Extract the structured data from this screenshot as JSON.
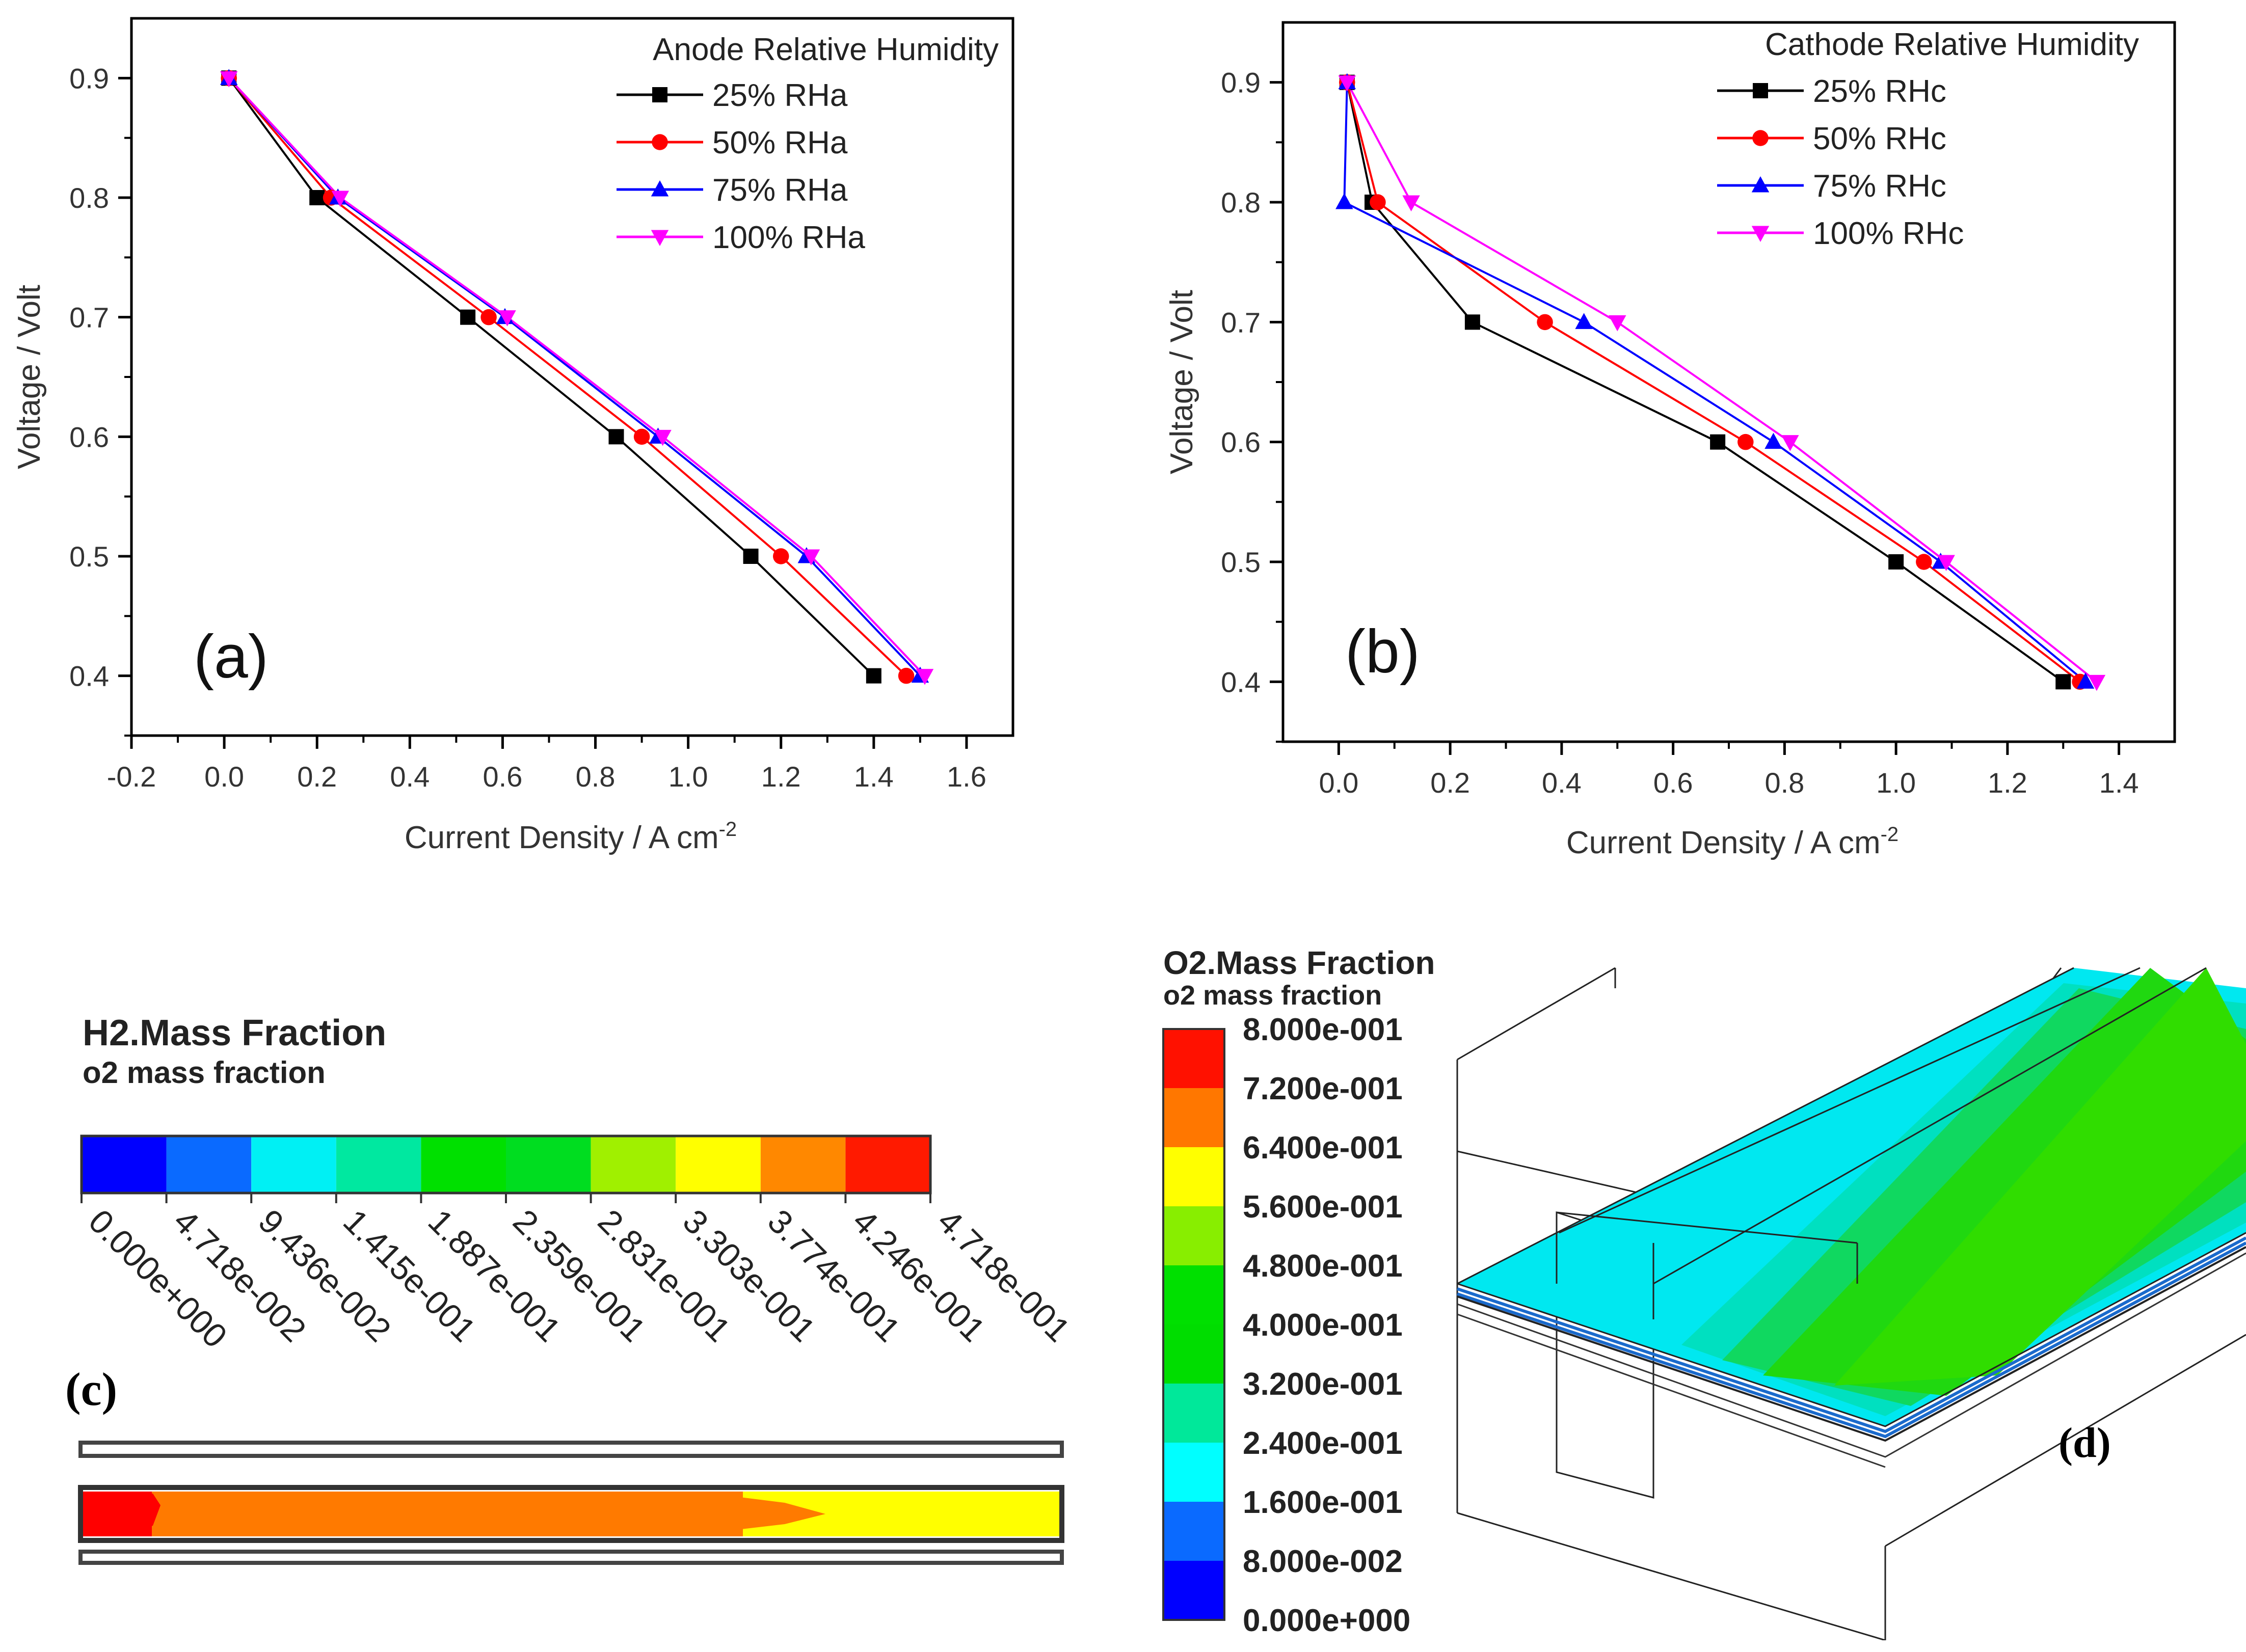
{
  "chart_data": [
    {
      "type": "line",
      "panel_label": "(a)",
      "legend_title": "Anode Relative Humidity",
      "xlabel": "Current Density / A cm",
      "xlabel_sup": "-2",
      "ylabel": "Voltage / Volt",
      "xlim": [
        -0.2,
        1.7
      ],
      "ylim": [
        0.35,
        0.95
      ],
      "xticks": [
        -0.2,
        0.0,
        0.2,
        0.4,
        0.6,
        0.8,
        1.0,
        1.2,
        1.4,
        1.6
      ],
      "xtick_labels": [
        "-0.2",
        "0.0",
        "0.2",
        "0.4",
        "0.6",
        "0.8",
        "1.0",
        "1.2",
        "1.4",
        "1.6"
      ],
      "yticks": [
        0.4,
        0.5,
        0.6,
        0.7,
        0.8,
        0.9
      ],
      "ytick_labels": [
        "0.4",
        "0.5",
        "0.6",
        "0.7",
        "0.8",
        "0.9"
      ],
      "series": [
        {
          "name": "25% RHa",
          "color": "#000000",
          "marker": "square",
          "x": [
            0.01,
            0.2,
            0.525,
            0.845,
            1.135,
            1.4
          ],
          "y": [
            0.9,
            0.8,
            0.7,
            0.6,
            0.5,
            0.4
          ]
        },
        {
          "name": "50% RHa",
          "color": "#ff0000",
          "marker": "circle",
          "x": [
            0.01,
            0.23,
            0.57,
            0.9,
            1.2,
            1.47
          ],
          "y": [
            0.9,
            0.8,
            0.7,
            0.6,
            0.5,
            0.4
          ]
        },
        {
          "name": "75% RHa",
          "color": "#0000ff",
          "marker": "triangle-up",
          "x": [
            0.01,
            0.245,
            0.605,
            0.935,
            1.255,
            1.5
          ],
          "y": [
            0.9,
            0.8,
            0.7,
            0.6,
            0.5,
            0.4
          ]
        },
        {
          "name": "100% RHa",
          "color": "#ff00ff",
          "marker": "triangle-down",
          "x": [
            0.01,
            0.25,
            0.61,
            0.945,
            1.265,
            1.51
          ],
          "y": [
            0.9,
            0.8,
            0.7,
            0.6,
            0.5,
            0.4
          ]
        }
      ]
    },
    {
      "type": "line",
      "panel_label": "(b)",
      "legend_title": "Cathode Relative Humidity",
      "xlabel": "Current Density / A cm",
      "xlabel_sup": "-2",
      "ylabel": "Voltage / Volt",
      "xlim": [
        -0.1,
        1.5
      ],
      "ylim": [
        0.35,
        0.95
      ],
      "xticks": [
        0.0,
        0.2,
        0.4,
        0.6,
        0.8,
        1.0,
        1.2,
        1.4
      ],
      "xtick_labels": [
        "0.0",
        "0.2",
        "0.4",
        "0.6",
        "0.8",
        "1.0",
        "1.2",
        "1.4"
      ],
      "yticks": [
        0.4,
        0.5,
        0.6,
        0.7,
        0.8,
        0.9
      ],
      "ytick_labels": [
        "0.4",
        "0.5",
        "0.6",
        "0.7",
        "0.8",
        "0.9"
      ],
      "series": [
        {
          "name": "25% RHc",
          "color": "#000000",
          "marker": "square",
          "x": [
            0.015,
            0.06,
            0.24,
            0.68,
            1.0,
            1.3
          ],
          "y": [
            0.9,
            0.8,
            0.7,
            0.6,
            0.5,
            0.4
          ]
        },
        {
          "name": "50% RHc",
          "color": "#ff0000",
          "marker": "circle",
          "x": [
            0.015,
            0.07,
            0.37,
            0.73,
            1.05,
            1.33
          ],
          "y": [
            0.9,
            0.8,
            0.7,
            0.6,
            0.5,
            0.4
          ]
        },
        {
          "name": "75% RHc",
          "color": "#0000ff",
          "marker": "triangle-up",
          "x": [
            0.015,
            0.01,
            0.44,
            0.78,
            1.08,
            1.34
          ],
          "y": [
            0.9,
            0.8,
            0.7,
            0.6,
            0.5,
            0.4
          ]
        },
        {
          "name": "100% RHc",
          "color": "#ff00ff",
          "marker": "triangle-down",
          "x": [
            0.015,
            0.13,
            0.5,
            0.81,
            1.09,
            1.36
          ],
          "y": [
            0.9,
            0.8,
            0.7,
            0.6,
            0.5,
            0.4
          ]
        }
      ]
    }
  ],
  "panel_c": {
    "label": "(c)",
    "title": "H2.Mass Fraction",
    "subtitle": "o2 mass fraction",
    "colorbar_colors": [
      "#0000ff",
      "#0a6aff",
      "#00f0f4",
      "#00e8a0",
      "#00e000",
      "#00dd20",
      "#a0f000",
      "#ffff00",
      "#ff8800",
      "#ff1a00"
    ],
    "tick_labels": [
      "0.000e+000",
      "4.718e-002",
      "9.436e-002",
      "1.415e-001",
      "1.887e-001",
      "2.359e-001",
      "2.831e-001",
      "3.303e-001",
      "3.774e-001",
      "4.246e-001",
      "4.718e-001"
    ],
    "channel_colors": [
      "#ff0000",
      "#ff7a00",
      "#ffff00"
    ]
  },
  "panel_d": {
    "label": "(d)",
    "title": "O2.Mass Fraction",
    "subtitle": "o2 mass fraction",
    "colorbar_colors": [
      "#0000ff",
      "#0a6aff",
      "#00ffff",
      "#00e89a",
      "#00dd00",
      "#00e000",
      "#88ee00",
      "#ffff00",
      "#ff7700",
      "#ff1100"
    ],
    "tick_labels": [
      "8.000e-001",
      "7.200e-001",
      "6.400e-001",
      "5.600e-001",
      "4.800e-001",
      "4.000e-001",
      "3.200e-001",
      "2.400e-001",
      "1.600e-001",
      "8.000e-002",
      "0.000e+000"
    ],
    "band_colors": [
      "#00e8f0",
      "#00e0c0",
      "#10d860",
      "#20d810",
      "#30dd00"
    ]
  }
}
